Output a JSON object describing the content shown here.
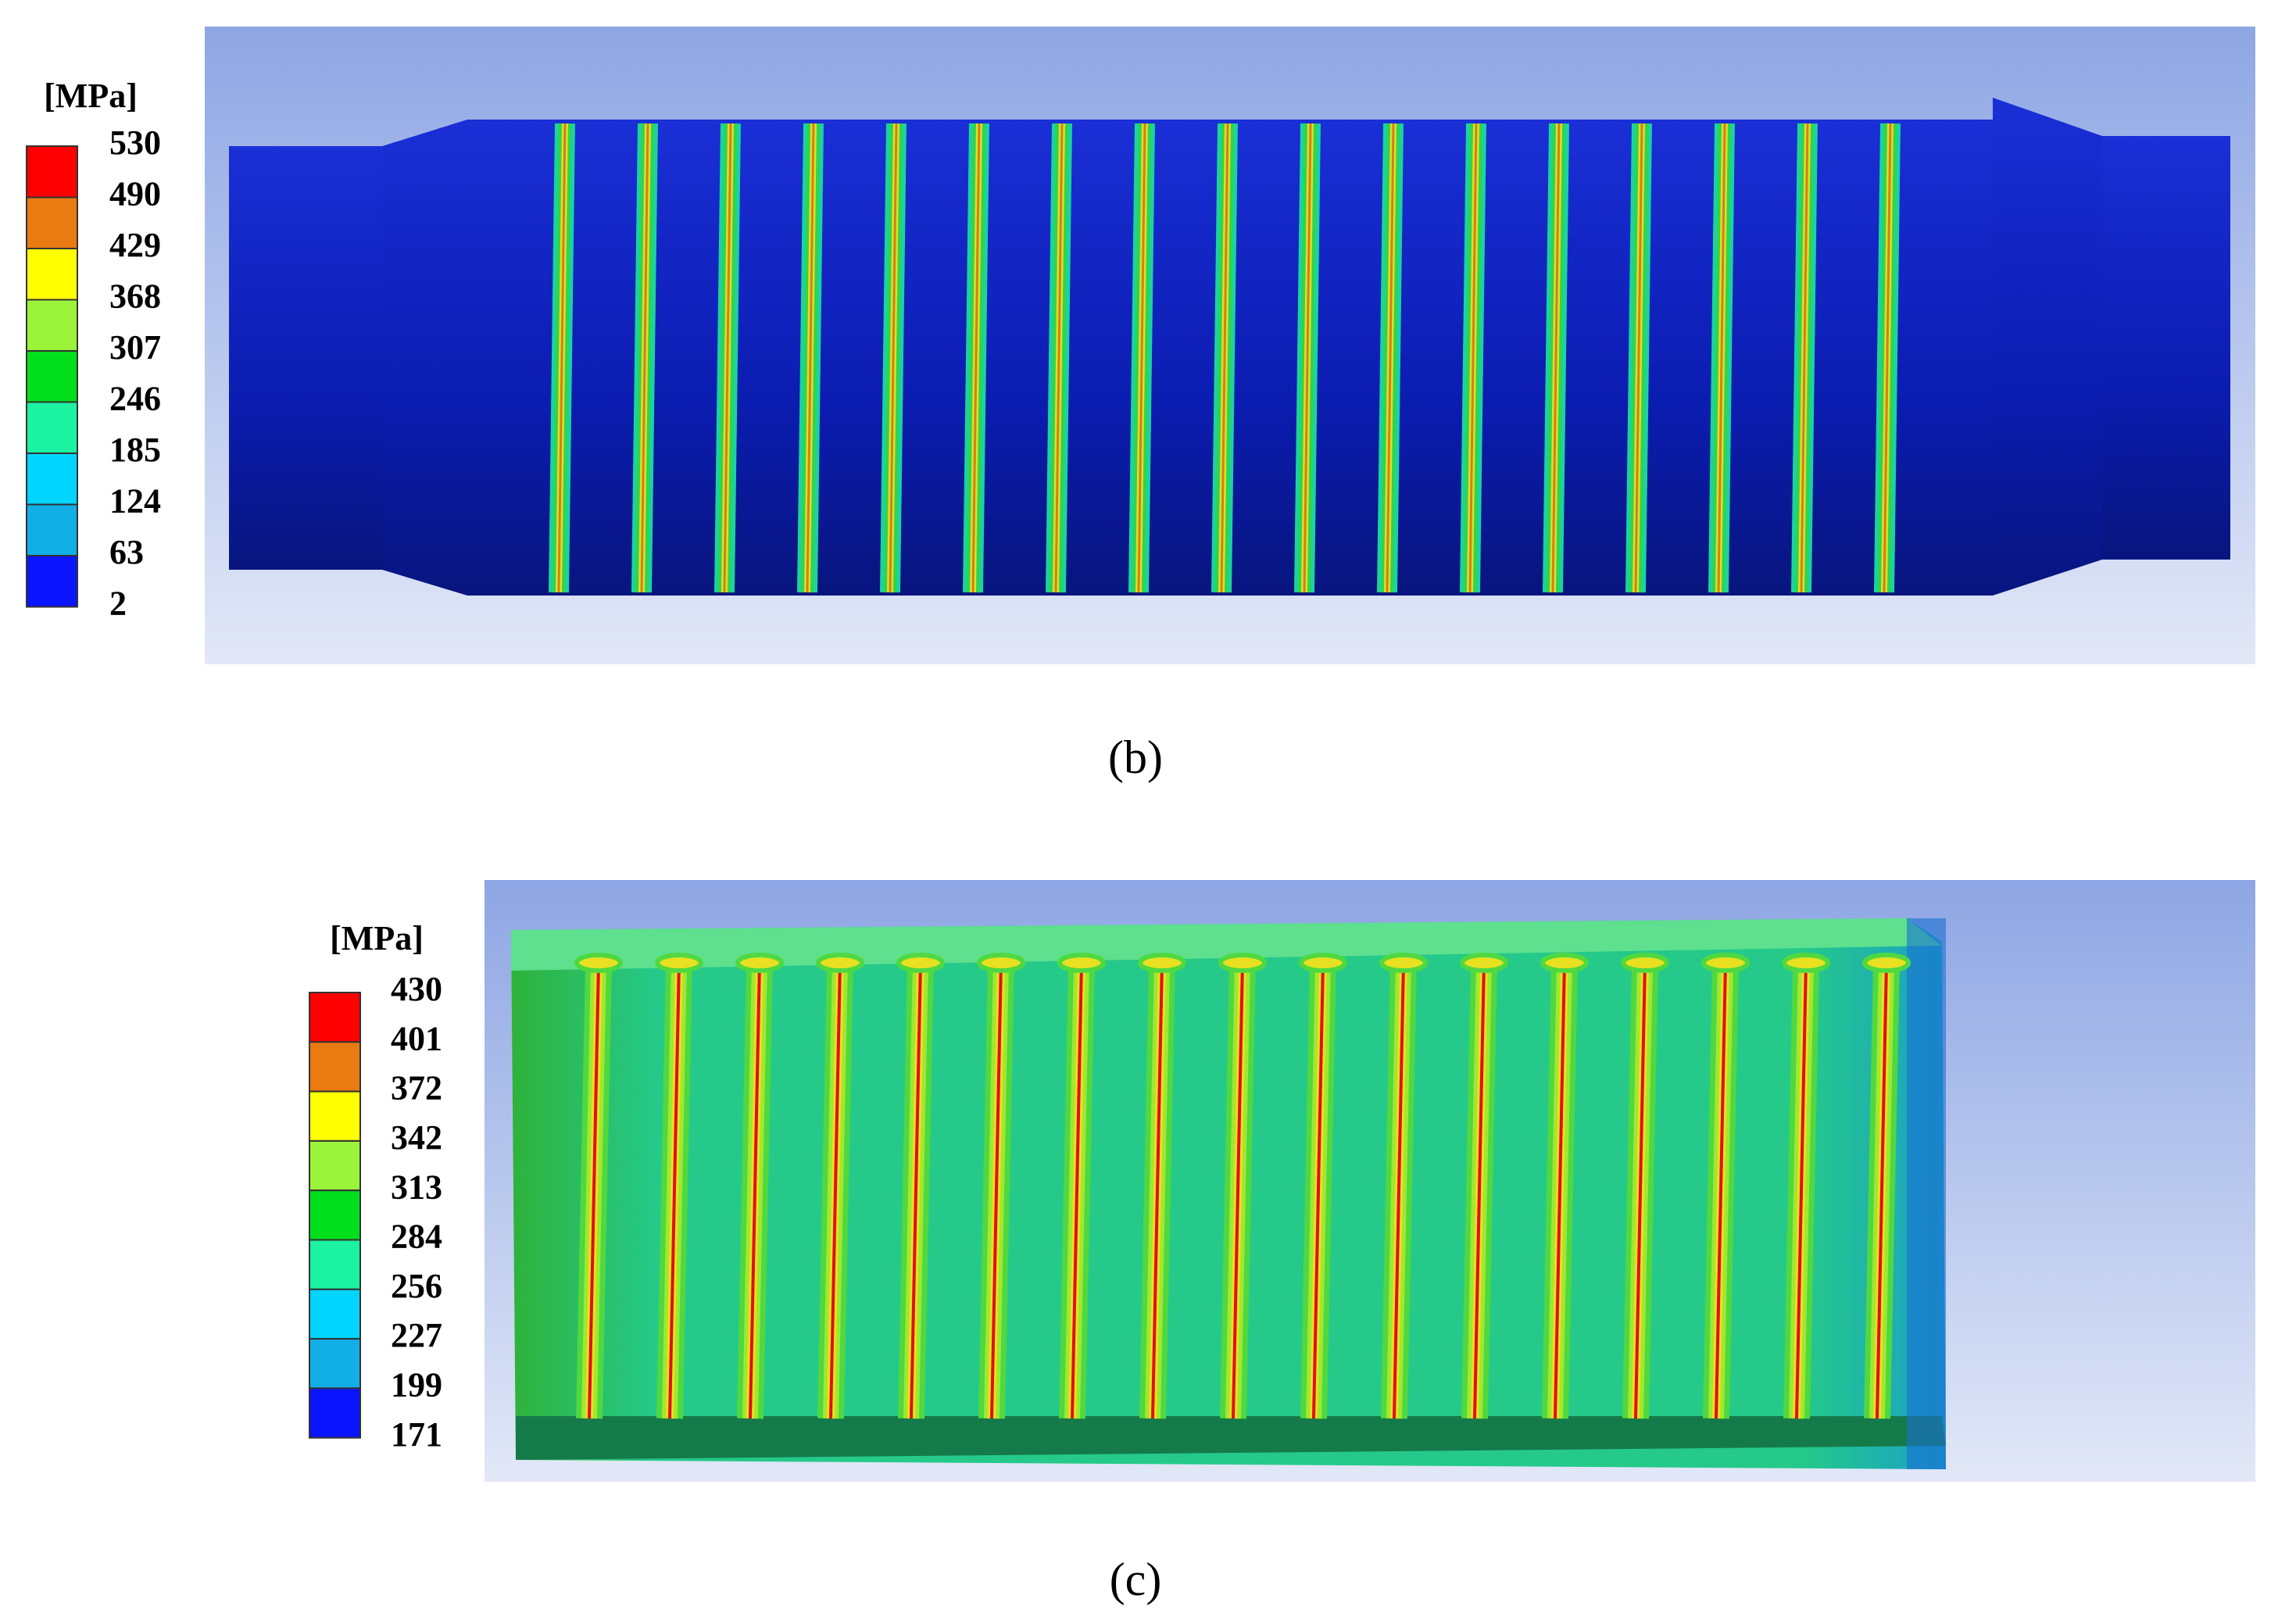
{
  "panels": [
    {
      "label": "(b)",
      "unit": "[MPa]",
      "legend": [
        530,
        490,
        429,
        368,
        307,
        246,
        185,
        124,
        63,
        2
      ]
    },
    {
      "label": "(c)",
      "unit": "[MPa]",
      "legend": [
        430,
        401,
        372,
        342,
        313,
        284,
        256,
        227,
        199,
        171
      ]
    }
  ]
}
